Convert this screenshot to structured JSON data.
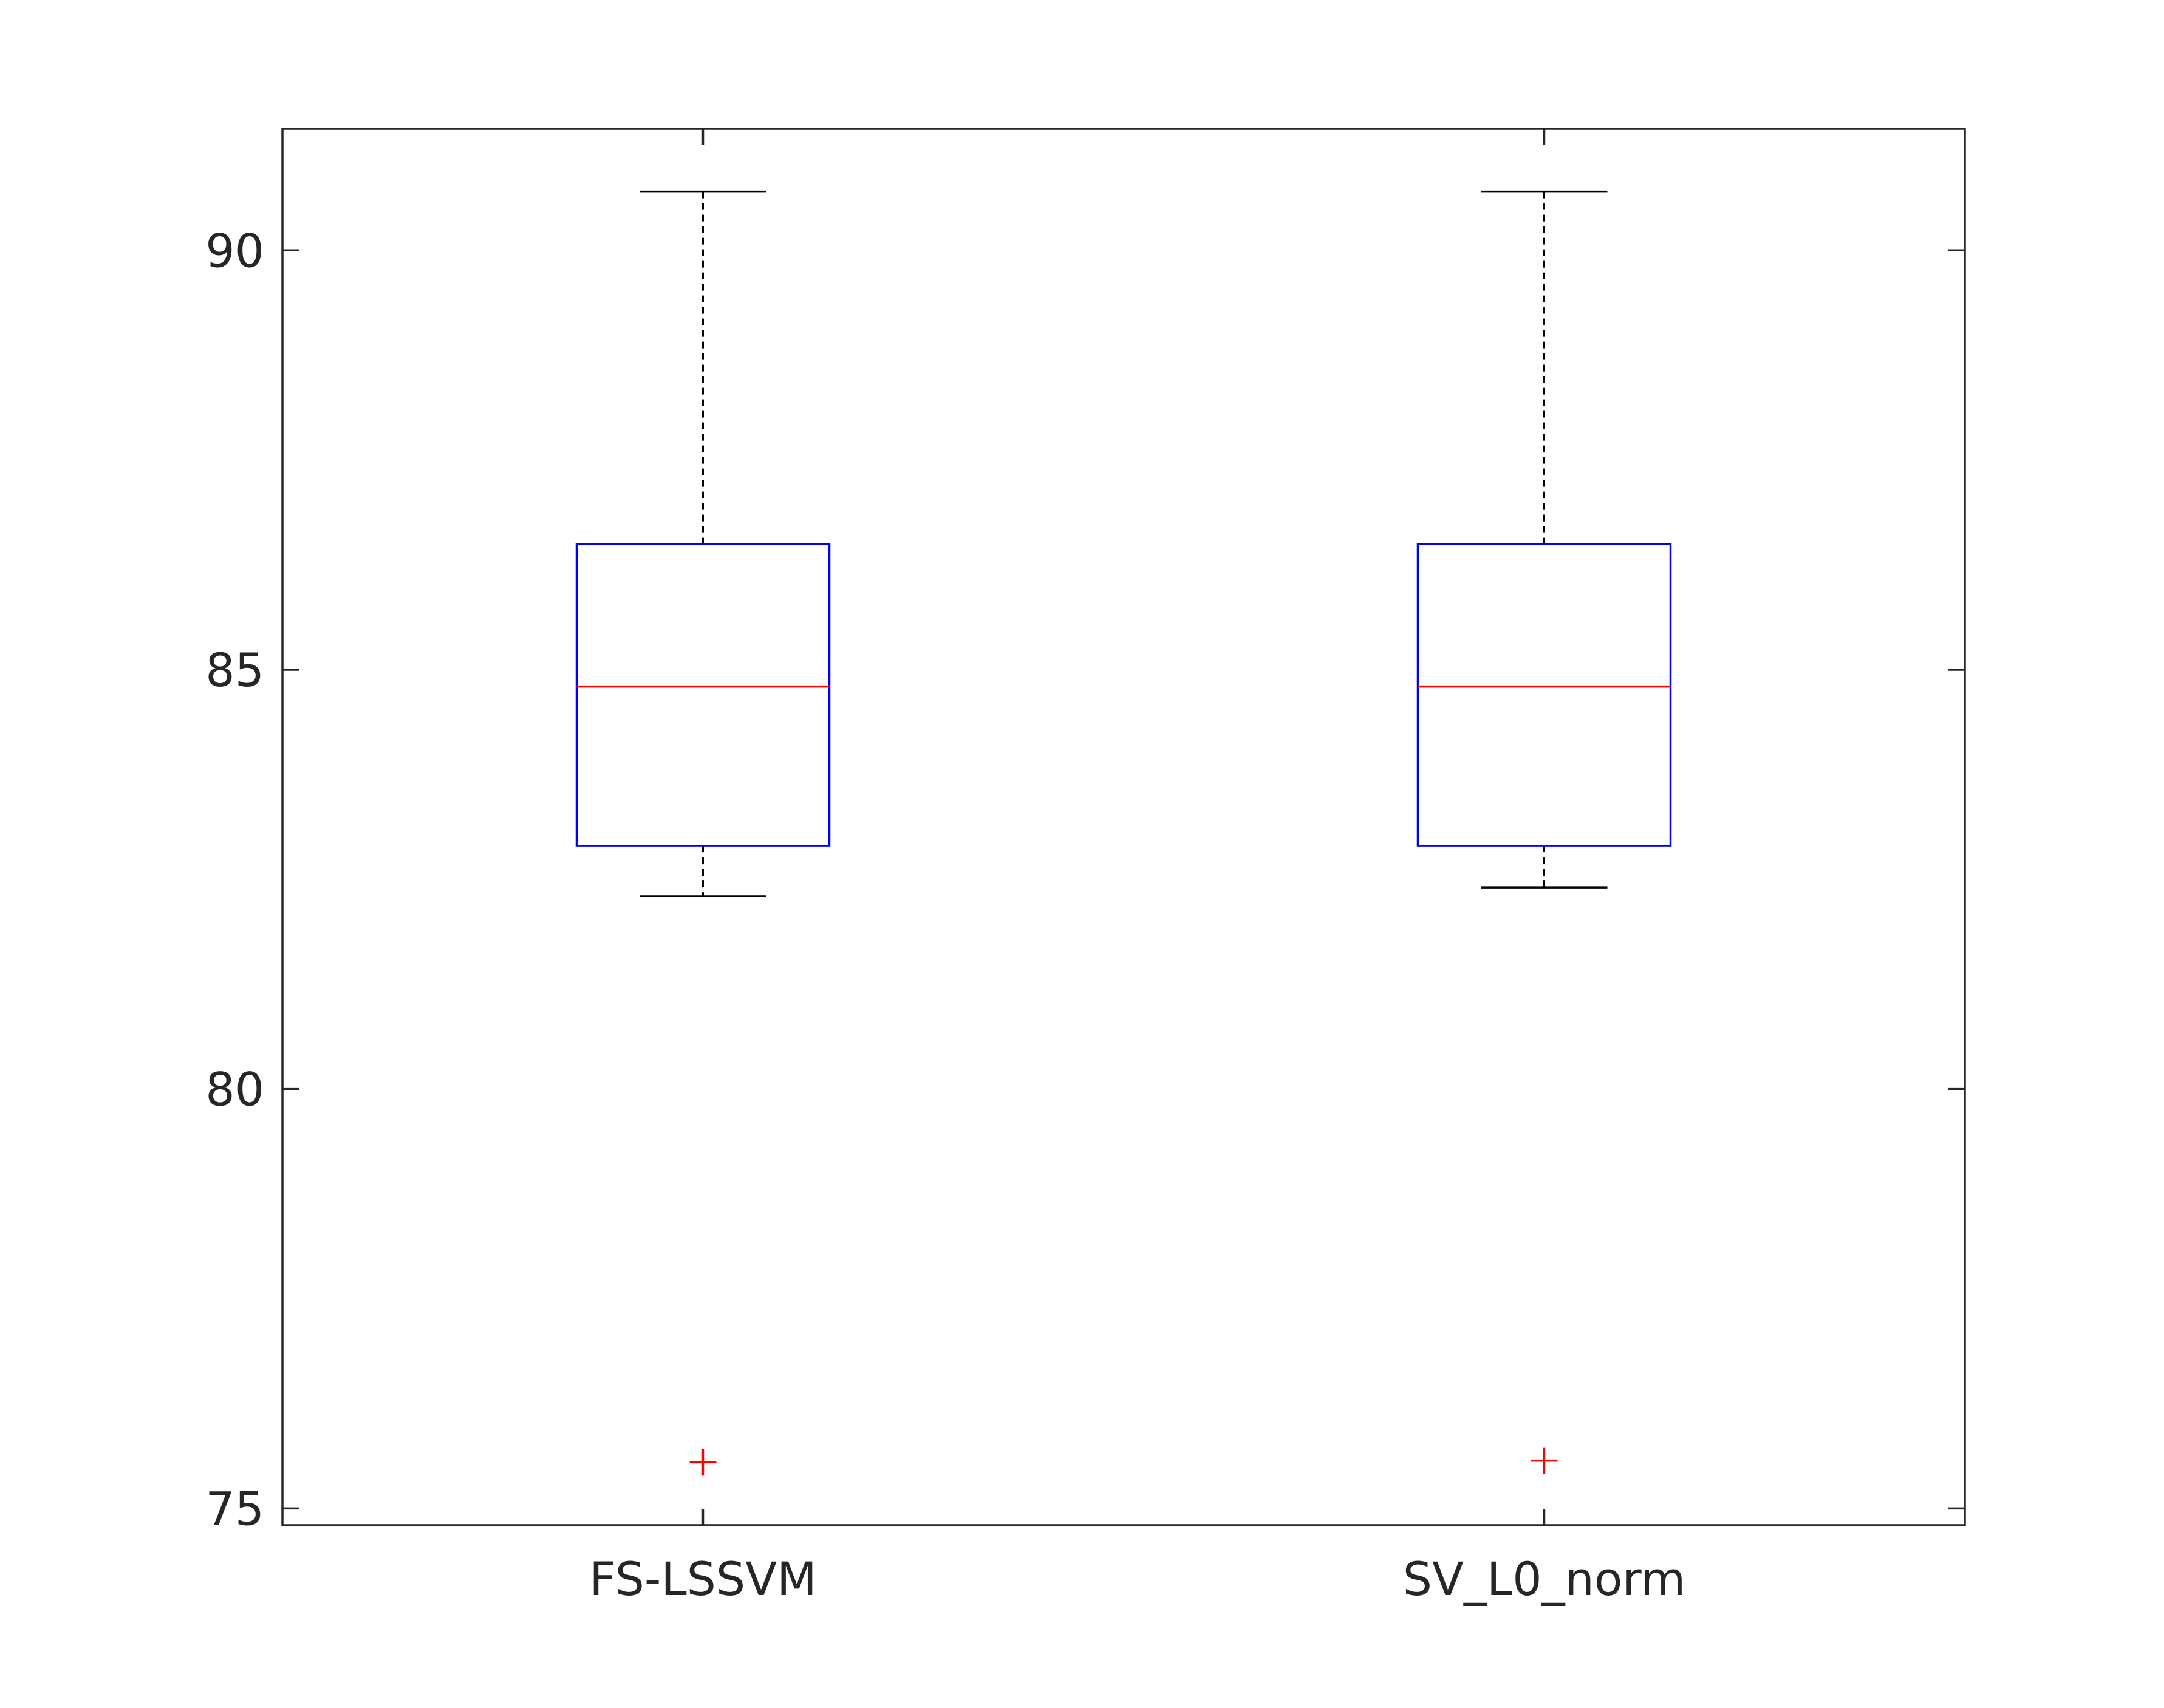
{
  "chart_data": {
    "type": "box",
    "title": "",
    "xlabel": "",
    "ylabel": "",
    "ylim": [
      74.8,
      91.45
    ],
    "yticks": [
      75,
      80,
      85,
      90
    ],
    "grid": false,
    "legend": "none",
    "categories": [
      "FS-LSSVM",
      "SV_L0_norm"
    ],
    "boxes": [
      {
        "category": "FS-LSSVM",
        "whisker_low": 82.3,
        "q1": 82.9,
        "median": 84.8,
        "q3": 86.5,
        "whisker_high": 90.7,
        "outliers": [
          75.55
        ]
      },
      {
        "category": "SV_L0_norm",
        "whisker_low": 82.4,
        "q1": 82.9,
        "median": 84.8,
        "q3": 86.5,
        "whisker_high": 90.7,
        "outliers": [
          75.57
        ]
      }
    ],
    "colors": {
      "box": "#0000ff",
      "median": "#ff0000",
      "outlier": "#ff0000",
      "whisker": "#000000",
      "axis": "#262626"
    }
  }
}
